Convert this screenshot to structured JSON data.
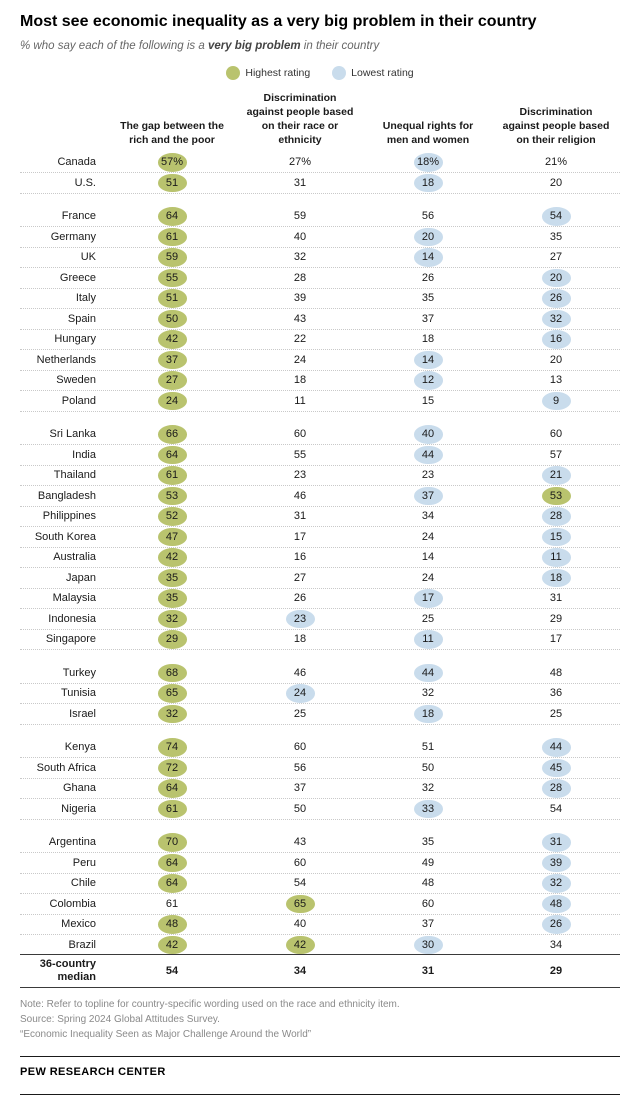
{
  "header": {
    "title": "Most see economic inequality as a very big problem in their country",
    "subtitle_prefix": "% who say each of the following is a ",
    "subtitle_bold": "very big problem",
    "subtitle_suffix": " in their country"
  },
  "footer": {
    "note": "Note: Refer to topline for country-specific wording used on the race and ethnicity item.",
    "source": "Source: Spring 2024 Global Attitudes Survey.",
    "report": "“Economic Inequality Seen as Major Challenge Around the World”",
    "brand": "PEW RESEARCH CENTER"
  },
  "chart_data": {
    "type": "table",
    "title": "Most see economic inequality as a very big problem in their country",
    "subtitle": "% who say each of the following is a very big problem in their country",
    "unit": "%",
    "legend": {
      "highest_label": "Highest rating",
      "lowest_label": "Lowest rating",
      "highest_color": "#b9c36e",
      "lowest_color": "#c9dcec"
    },
    "columns": [
      "The gap between the rich and the poor",
      "Discrimination against people based on their race or ethnicity",
      "Unequal rights for men and women",
      "Discrimination against people based on their religion"
    ],
    "rows": [
      {
        "country": "Canada",
        "percent": true,
        "values": [
          57,
          27,
          18,
          21
        ],
        "marks": [
          "high",
          "",
          "low",
          ""
        ]
      },
      {
        "country": "U.S.",
        "values": [
          51,
          31,
          18,
          20
        ],
        "marks": [
          "high",
          "",
          "low",
          ""
        ]
      },
      {
        "country": "France",
        "group_start": true,
        "values": [
          64,
          59,
          56,
          54
        ],
        "marks": [
          "high",
          "",
          "",
          "low"
        ]
      },
      {
        "country": "Germany",
        "values": [
          61,
          40,
          20,
          35
        ],
        "marks": [
          "high",
          "",
          "low",
          ""
        ]
      },
      {
        "country": "UK",
        "values": [
          59,
          32,
          14,
          27
        ],
        "marks": [
          "high",
          "",
          "low",
          ""
        ]
      },
      {
        "country": "Greece",
        "values": [
          55,
          28,
          26,
          20
        ],
        "marks": [
          "high",
          "",
          "",
          "low"
        ]
      },
      {
        "country": "Italy",
        "values": [
          51,
          39,
          35,
          26
        ],
        "marks": [
          "high",
          "",
          "",
          "low"
        ]
      },
      {
        "country": "Spain",
        "values": [
          50,
          43,
          37,
          32
        ],
        "marks": [
          "high",
          "",
          "",
          "low"
        ]
      },
      {
        "country": "Hungary",
        "values": [
          42,
          22,
          18,
          16
        ],
        "marks": [
          "high",
          "",
          "",
          "low"
        ]
      },
      {
        "country": "Netherlands",
        "values": [
          37,
          24,
          14,
          20
        ],
        "marks": [
          "high",
          "",
          "low",
          ""
        ]
      },
      {
        "country": "Sweden",
        "values": [
          27,
          18,
          12,
          13
        ],
        "marks": [
          "high",
          "",
          "low",
          ""
        ]
      },
      {
        "country": "Poland",
        "values": [
          24,
          11,
          15,
          9
        ],
        "marks": [
          "high",
          "",
          "",
          "low"
        ]
      },
      {
        "country": "Sri Lanka",
        "group_start": true,
        "values": [
          66,
          60,
          40,
          60
        ],
        "marks": [
          "high",
          "",
          "low",
          ""
        ]
      },
      {
        "country": "India",
        "values": [
          64,
          55,
          44,
          57
        ],
        "marks": [
          "high",
          "",
          "low",
          ""
        ]
      },
      {
        "country": "Thailand",
        "values": [
          61,
          23,
          23,
          21
        ],
        "marks": [
          "high",
          "",
          "",
          "low"
        ]
      },
      {
        "country": "Bangladesh",
        "values": [
          53,
          46,
          37,
          53
        ],
        "marks": [
          "high",
          "",
          "low",
          "high"
        ]
      },
      {
        "country": "Philippines",
        "values": [
          52,
          31,
          34,
          28
        ],
        "marks": [
          "high",
          "",
          "",
          "low"
        ]
      },
      {
        "country": "South Korea",
        "values": [
          47,
          17,
          24,
          15
        ],
        "marks": [
          "high",
          "",
          "",
          "low"
        ]
      },
      {
        "country": "Australia",
        "values": [
          42,
          16,
          14,
          11
        ],
        "marks": [
          "high",
          "",
          "",
          "low"
        ]
      },
      {
        "country": "Japan",
        "values": [
          35,
          27,
          24,
          18
        ],
        "marks": [
          "high",
          "",
          "",
          "low"
        ]
      },
      {
        "country": "Malaysia",
        "values": [
          35,
          26,
          17,
          31
        ],
        "marks": [
          "high",
          "",
          "low",
          ""
        ]
      },
      {
        "country": "Indonesia",
        "values": [
          32,
          23,
          25,
          29
        ],
        "marks": [
          "high",
          "low",
          "",
          ""
        ]
      },
      {
        "country": "Singapore",
        "values": [
          29,
          18,
          11,
          17
        ],
        "marks": [
          "high",
          "",
          "low",
          ""
        ]
      },
      {
        "country": "Turkey",
        "group_start": true,
        "values": [
          68,
          46,
          44,
          48
        ],
        "marks": [
          "high",
          "",
          "low",
          ""
        ]
      },
      {
        "country": "Tunisia",
        "values": [
          65,
          24,
          32,
          36
        ],
        "marks": [
          "high",
          "low",
          "",
          ""
        ]
      },
      {
        "country": "Israel",
        "values": [
          32,
          25,
          18,
          25
        ],
        "marks": [
          "high",
          "",
          "low",
          ""
        ]
      },
      {
        "country": "Kenya",
        "group_start": true,
        "values": [
          74,
          60,
          51,
          44
        ],
        "marks": [
          "high",
          "",
          "",
          "low"
        ]
      },
      {
        "country": "South Africa",
        "values": [
          72,
          56,
          50,
          45
        ],
        "marks": [
          "high",
          "",
          "",
          "low"
        ]
      },
      {
        "country": "Ghana",
        "values": [
          64,
          37,
          32,
          28
        ],
        "marks": [
          "high",
          "",
          "",
          "low"
        ]
      },
      {
        "country": "Nigeria",
        "values": [
          61,
          50,
          33,
          54
        ],
        "marks": [
          "high",
          "",
          "low",
          ""
        ]
      },
      {
        "country": "Argentina",
        "group_start": true,
        "values": [
          70,
          43,
          35,
          31
        ],
        "marks": [
          "high",
          "",
          "",
          "low"
        ]
      },
      {
        "country": "Peru",
        "values": [
          64,
          60,
          49,
          39
        ],
        "marks": [
          "high",
          "",
          "",
          "low"
        ]
      },
      {
        "country": "Chile",
        "values": [
          64,
          54,
          48,
          32
        ],
        "marks": [
          "high",
          "",
          "",
          "low"
        ]
      },
      {
        "country": "Colombia",
        "values": [
          61,
          65,
          60,
          48
        ],
        "marks": [
          "",
          "high",
          "",
          "low"
        ]
      },
      {
        "country": "Mexico",
        "values": [
          48,
          40,
          37,
          26
        ],
        "marks": [
          "high",
          "",
          "",
          "low"
        ]
      },
      {
        "country": "Brazil",
        "values": [
          42,
          42,
          30,
          34
        ],
        "marks": [
          "high",
          "high",
          "low",
          ""
        ]
      }
    ],
    "median": {
      "label": "36-country median",
      "values": [
        54,
        34,
        31,
        29
      ]
    }
  }
}
